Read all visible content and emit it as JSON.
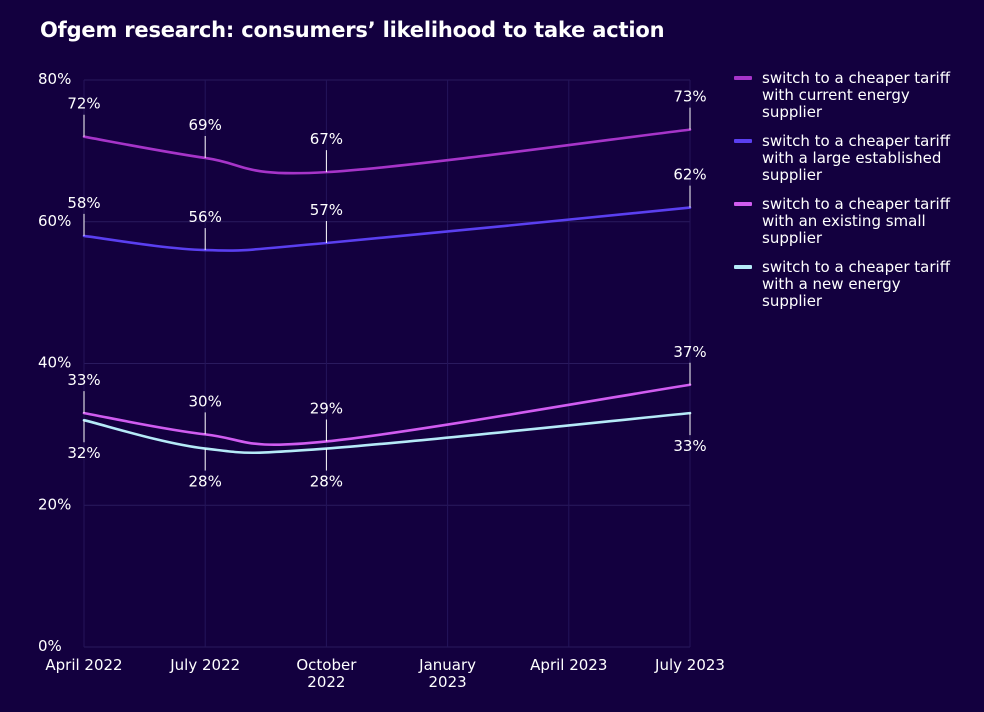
{
  "chart_data": {
    "type": "line",
    "title": "Ofgem research: consumers’ likelihood to take action",
    "xlabel": "",
    "ylabel": "",
    "ylim": [
      0,
      80
    ],
    "yticks": [
      "0%",
      "20%",
      "40%",
      "60%",
      "80%"
    ],
    "x_ticks": [
      {
        "label": [
          "April 2022"
        ],
        "date": "2022-04"
      },
      {
        "label": [
          "July 2022"
        ],
        "date": "2022-07"
      },
      {
        "label": [
          "October",
          "2022"
        ],
        "date": "2022-10"
      },
      {
        "label": [
          "January",
          "2023"
        ],
        "date": "2023-01"
      },
      {
        "label": [
          "April 2023"
        ],
        "date": "2023-04"
      },
      {
        "label": [
          "July 2023"
        ],
        "date": "2023-07"
      }
    ],
    "x": [
      "2022-04",
      "2022-07",
      "2022-10",
      "2023-07"
    ],
    "grid": true,
    "legend_position": "right",
    "series": [
      {
        "name": "switch to a cheaper tariff with current energy supplier",
        "name_lines": [
          "switch to a cheaper tariff",
          "with current energy",
          "supplier"
        ],
        "color": "#a634c9",
        "values": [
          72,
          69,
          67,
          73
        ],
        "labels": [
          "72%",
          "69%",
          "67%",
          "73%"
        ],
        "label_side": [
          "above",
          "above",
          "above",
          "above"
        ]
      },
      {
        "name": "switch to a cheaper tariff with a large established supplier",
        "name_lines": [
          "switch to a cheaper tariff",
          "with a large established",
          "supplier"
        ],
        "color": "#5a3ff0",
        "values": [
          58,
          56,
          57,
          62
        ],
        "labels": [
          "58%",
          "56%",
          "57%",
          "62%"
        ],
        "label_side": [
          "above",
          "above",
          "above",
          "above"
        ]
      },
      {
        "name": "switch to a cheaper tariff with an existing small supplier",
        "name_lines": [
          "switch to a cheaper tariff",
          "with an existing small",
          "supplier"
        ],
        "color": "#d05cf0",
        "values": [
          33,
          30,
          29,
          37
        ],
        "labels": [
          "33%",
          "30%",
          "29%",
          "37%"
        ],
        "label_side": [
          "above",
          "above",
          "above",
          "above"
        ]
      },
      {
        "name": "switch to a cheaper tariff with a new energy supplier",
        "name_lines": [
          "switch to a cheaper tariff",
          "with a new energy",
          "supplier"
        ],
        "color": "#b5eaf7",
        "values": [
          32,
          28,
          28,
          33
        ],
        "labels": [
          "32%",
          "28%",
          "28%",
          "33%"
        ],
        "label_side": [
          "below",
          "below",
          "below",
          "below"
        ]
      }
    ]
  }
}
